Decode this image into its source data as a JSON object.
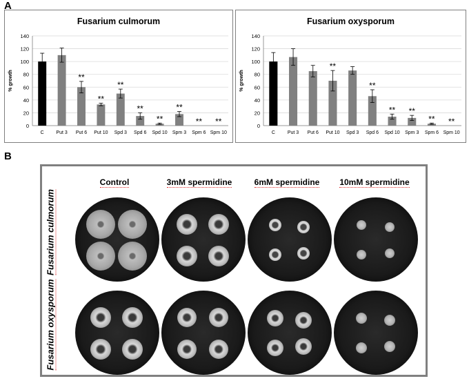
{
  "panels": {
    "a_label": "A",
    "b_label": "B"
  },
  "chart_data": [
    {
      "type": "bar",
      "title": "Fusarium culmorum",
      "ylabel": "% growth",
      "xlabel": "",
      "ylim": [
        0,
        140
      ],
      "yticks": [
        0,
        20,
        40,
        60,
        80,
        100,
        120,
        140
      ],
      "grid": true,
      "categories": [
        "C",
        "Put 3",
        "Put 6",
        "Put 10",
        "Spd 3",
        "Spd 6",
        "Spd 10",
        "Spm 3",
        "Spm 6",
        "Spm 10"
      ],
      "values": [
        100,
        110,
        60,
        33,
        50,
        15,
        3,
        18,
        0,
        0
      ],
      "errors": [
        13,
        11,
        9,
        2,
        7,
        5,
        1,
        4,
        0,
        0
      ],
      "annotations": [
        "",
        "",
        "**",
        "**",
        "**",
        "**",
        "**",
        "**",
        "**",
        "**"
      ],
      "colors": {
        "control": "#000000",
        "treatment": "#808080"
      }
    },
    {
      "type": "bar",
      "title": "Fusarium oxysporum",
      "ylabel": "% growth",
      "xlabel": "",
      "ylim": [
        0,
        140
      ],
      "yticks": [
        0,
        20,
        40,
        60,
        80,
        100,
        120,
        140
      ],
      "grid": true,
      "categories": [
        "C",
        "Put 3",
        "Put 6",
        "Put 10",
        "Spd 3",
        "Spd 6",
        "Spd 10",
        "Spm 3",
        "Spm 6",
        "Spm 10"
      ],
      "values": [
        100,
        107,
        85,
        70,
        86,
        46,
        14,
        12,
        3,
        0
      ],
      "errors": [
        14,
        13,
        9,
        16,
        6,
        10,
        4,
        4,
        1,
        0
      ],
      "annotations": [
        "",
        "",
        "",
        "**",
        "",
        "**",
        "**",
        "**",
        "**",
        "**"
      ],
      "colors": {
        "control": "#000000",
        "treatment": "#808080"
      }
    }
  ],
  "photos": {
    "columns": [
      "Control",
      "3mM spermidine",
      "6mM spermidine",
      "10mM spermidine"
    ],
    "rows": [
      "Fusarium culmorum",
      "Fusarium oxysporum"
    ]
  }
}
